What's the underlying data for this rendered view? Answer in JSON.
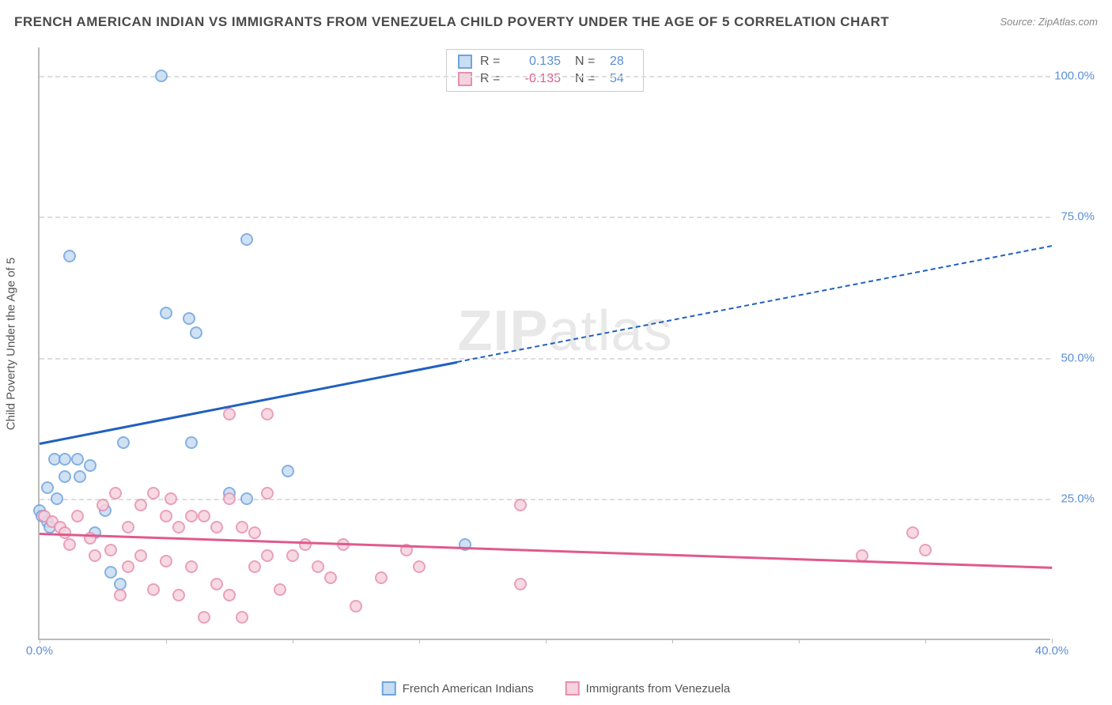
{
  "title": "FRENCH AMERICAN INDIAN VS IMMIGRANTS FROM VENEZUELA CHILD POVERTY UNDER THE AGE OF 5 CORRELATION CHART",
  "source": "Source: ZipAtlas.com",
  "ylabel": "Child Poverty Under the Age of 5",
  "watermark_bold": "ZIP",
  "watermark_light": "atlas",
  "chart": {
    "type": "scatter",
    "xlim": [
      0,
      40
    ],
    "ylim": [
      0,
      105
    ],
    "x_ticks": [
      0,
      5,
      10,
      15,
      20,
      25,
      30,
      35,
      40
    ],
    "x_labels": [
      {
        "v": 0,
        "t": "0.0%"
      },
      {
        "v": 40,
        "t": "40.0%"
      }
    ],
    "y_grid": [
      25,
      50,
      75,
      100
    ],
    "y_labels": [
      {
        "v": 25,
        "t": "25.0%"
      },
      {
        "v": 50,
        "t": "50.0%"
      },
      {
        "v": 75,
        "t": "75.0%"
      },
      {
        "v": 100,
        "t": "100.0%"
      }
    ],
    "background_color": "#ffffff",
    "grid_color": "#dddddd",
    "axis_color": "#bbbbbb",
    "marker_radius": 8,
    "marker_stroke_width": 2,
    "series": [
      {
        "key": "blue",
        "name": "French American Indians",
        "fill": "#c8dcf2",
        "stroke": "#6fa4de",
        "trend_color": "#2060c0",
        "R": "0.135",
        "r_color": "#5b8fd6",
        "N": "28",
        "trend": {
          "x1": 0,
          "y1": 35,
          "x2": 40,
          "y2": 70
        },
        "dash_from_x": 16.5,
        "points": [
          [
            4.8,
            100
          ],
          [
            1.2,
            68
          ],
          [
            8.2,
            71
          ],
          [
            5.0,
            58
          ],
          [
            5.9,
            57
          ],
          [
            6.2,
            54.5
          ],
          [
            3.3,
            35
          ],
          [
            6.0,
            35
          ],
          [
            0.6,
            32
          ],
          [
            1.0,
            32
          ],
          [
            1.5,
            32
          ],
          [
            2.0,
            31
          ],
          [
            1.0,
            29
          ],
          [
            1.6,
            29
          ],
          [
            0.3,
            27
          ],
          [
            0.7,
            25
          ],
          [
            0.0,
            23
          ],
          [
            0.1,
            22
          ],
          [
            0.3,
            21
          ],
          [
            0.4,
            20
          ],
          [
            7.5,
            26
          ],
          [
            8.2,
            25
          ],
          [
            9.8,
            30
          ],
          [
            2.2,
            19
          ],
          [
            2.8,
            12
          ],
          [
            3.2,
            10
          ],
          [
            2.6,
            23
          ],
          [
            16.8,
            17
          ]
        ]
      },
      {
        "key": "pink",
        "name": "Immigrants from Venezuela",
        "fill": "#f6d3de",
        "stroke": "#e78fb0",
        "trend_color": "#e05a8c",
        "R": "-0.135",
        "r_color": "#e05a8c",
        "N": "54",
        "trend": {
          "x1": 0,
          "y1": 19,
          "x2": 40,
          "y2": 13
        },
        "dash_from_x": null,
        "points": [
          [
            7.5,
            40
          ],
          [
            9.0,
            40
          ],
          [
            0.2,
            22
          ],
          [
            0.5,
            21
          ],
          [
            0.8,
            20
          ],
          [
            1.0,
            19
          ],
          [
            1.5,
            22
          ],
          [
            2.0,
            18
          ],
          [
            2.5,
            24
          ],
          [
            3.0,
            26
          ],
          [
            3.5,
            20
          ],
          [
            4.0,
            24
          ],
          [
            4.5,
            26
          ],
          [
            5.0,
            22
          ],
          [
            5.2,
            25
          ],
          [
            5.5,
            20
          ],
          [
            6.0,
            22
          ],
          [
            6.5,
            22
          ],
          [
            7.0,
            20
          ],
          [
            7.5,
            25
          ],
          [
            8.0,
            20
          ],
          [
            8.5,
            19
          ],
          [
            9.0,
            26
          ],
          [
            1.2,
            17
          ],
          [
            2.2,
            15
          ],
          [
            2.8,
            16
          ],
          [
            3.2,
            8
          ],
          [
            3.5,
            13
          ],
          [
            4.0,
            15
          ],
          [
            4.5,
            9
          ],
          [
            5.0,
            14
          ],
          [
            5.5,
            8
          ],
          [
            6.0,
            13
          ],
          [
            6.5,
            4
          ],
          [
            7.0,
            10
          ],
          [
            7.5,
            8
          ],
          [
            8.0,
            4
          ],
          [
            8.5,
            13
          ],
          [
            9.0,
            15
          ],
          [
            9.5,
            9
          ],
          [
            10.0,
            15
          ],
          [
            10.5,
            17
          ],
          [
            11.0,
            13
          ],
          [
            11.5,
            11
          ],
          [
            12.0,
            17
          ],
          [
            12.5,
            6
          ],
          [
            13.5,
            11
          ],
          [
            14.5,
            16
          ],
          [
            15.0,
            13
          ],
          [
            19.0,
            10
          ],
          [
            19.0,
            24
          ],
          [
            32.5,
            15
          ],
          [
            34.5,
            19
          ],
          [
            35.0,
            16
          ]
        ]
      }
    ]
  },
  "legend_top": {
    "r_label": "R  =",
    "n_label": "N  ="
  }
}
